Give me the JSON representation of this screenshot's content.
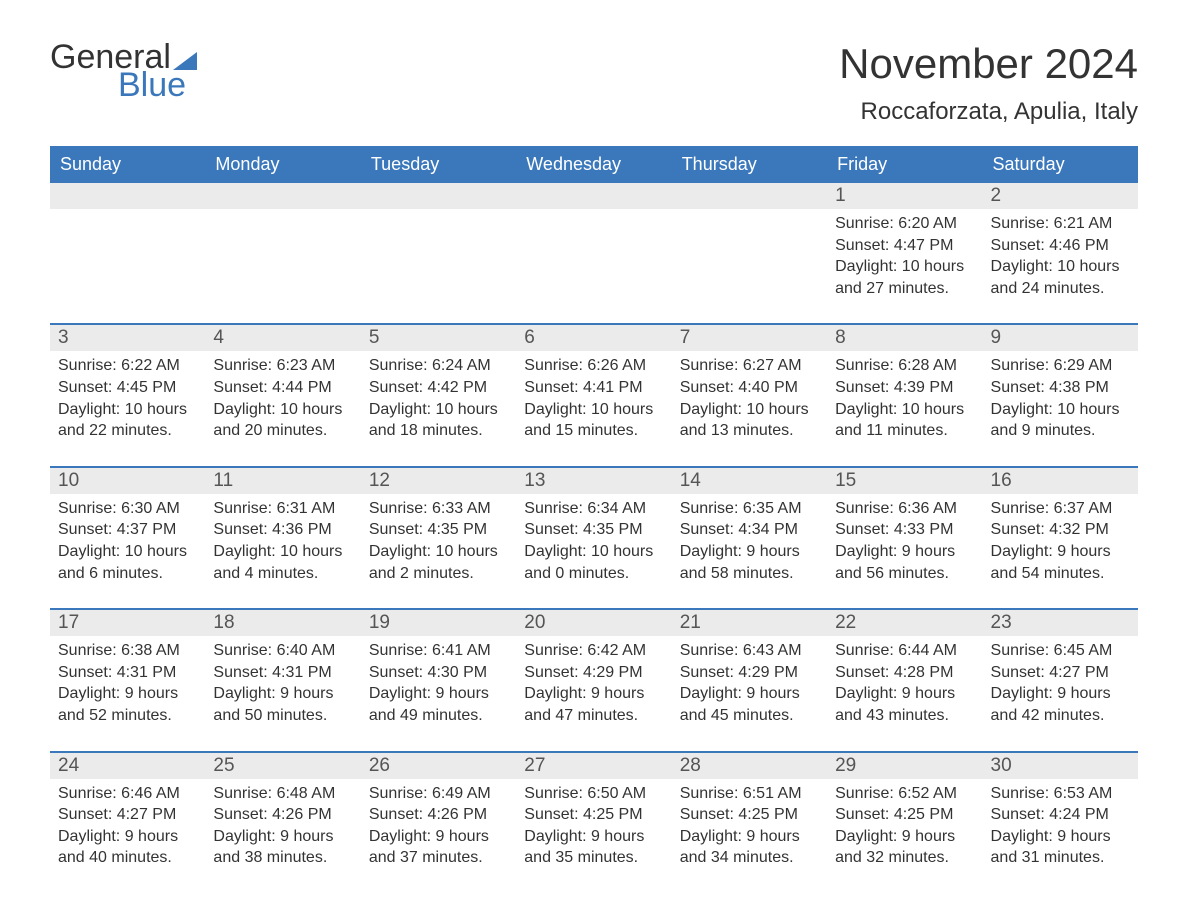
{
  "logo": {
    "text1": "General",
    "text2": "Blue"
  },
  "title": "November 2024",
  "location": "Roccaforzata, Apulia, Italy",
  "colors": {
    "header_bg": "#3b78bb",
    "header_fg": "#ffffff",
    "strip_bg": "#ebebeb",
    "border": "#3b78bb",
    "text": "#333333",
    "logo_accent": "#3b78bb"
  },
  "typography": {
    "title_fontsize": 42,
    "location_fontsize": 24,
    "dayheader_fontsize": 18,
    "date_fontsize": 19,
    "body_fontsize": 16
  },
  "day_headers": [
    "Sunday",
    "Monday",
    "Tuesday",
    "Wednesday",
    "Thursday",
    "Friday",
    "Saturday"
  ],
  "weeks": [
    [
      {
        "blank": true
      },
      {
        "blank": true
      },
      {
        "blank": true
      },
      {
        "blank": true
      },
      {
        "blank": true
      },
      {
        "date": "1",
        "sunrise": "6:20 AM",
        "sunset": "4:47 PM",
        "daylight": "10 hours and 27 minutes."
      },
      {
        "date": "2",
        "sunrise": "6:21 AM",
        "sunset": "4:46 PM",
        "daylight": "10 hours and 24 minutes."
      }
    ],
    [
      {
        "date": "3",
        "sunrise": "6:22 AM",
        "sunset": "4:45 PM",
        "daylight": "10 hours and 22 minutes."
      },
      {
        "date": "4",
        "sunrise": "6:23 AM",
        "sunset": "4:44 PM",
        "daylight": "10 hours and 20 minutes."
      },
      {
        "date": "5",
        "sunrise": "6:24 AM",
        "sunset": "4:42 PM",
        "daylight": "10 hours and 18 minutes."
      },
      {
        "date": "6",
        "sunrise": "6:26 AM",
        "sunset": "4:41 PM",
        "daylight": "10 hours and 15 minutes."
      },
      {
        "date": "7",
        "sunrise": "6:27 AM",
        "sunset": "4:40 PM",
        "daylight": "10 hours and 13 minutes."
      },
      {
        "date": "8",
        "sunrise": "6:28 AM",
        "sunset": "4:39 PM",
        "daylight": "10 hours and 11 minutes."
      },
      {
        "date": "9",
        "sunrise": "6:29 AM",
        "sunset": "4:38 PM",
        "daylight": "10 hours and 9 minutes."
      }
    ],
    [
      {
        "date": "10",
        "sunrise": "6:30 AM",
        "sunset": "4:37 PM",
        "daylight": "10 hours and 6 minutes."
      },
      {
        "date": "11",
        "sunrise": "6:31 AM",
        "sunset": "4:36 PM",
        "daylight": "10 hours and 4 minutes."
      },
      {
        "date": "12",
        "sunrise": "6:33 AM",
        "sunset": "4:35 PM",
        "daylight": "10 hours and 2 minutes."
      },
      {
        "date": "13",
        "sunrise": "6:34 AM",
        "sunset": "4:35 PM",
        "daylight": "10 hours and 0 minutes."
      },
      {
        "date": "14",
        "sunrise": "6:35 AM",
        "sunset": "4:34 PM",
        "daylight": "9 hours and 58 minutes."
      },
      {
        "date": "15",
        "sunrise": "6:36 AM",
        "sunset": "4:33 PM",
        "daylight": "9 hours and 56 minutes."
      },
      {
        "date": "16",
        "sunrise": "6:37 AM",
        "sunset": "4:32 PM",
        "daylight": "9 hours and 54 minutes."
      }
    ],
    [
      {
        "date": "17",
        "sunrise": "6:38 AM",
        "sunset": "4:31 PM",
        "daylight": "9 hours and 52 minutes."
      },
      {
        "date": "18",
        "sunrise": "6:40 AM",
        "sunset": "4:31 PM",
        "daylight": "9 hours and 50 minutes."
      },
      {
        "date": "19",
        "sunrise": "6:41 AM",
        "sunset": "4:30 PM",
        "daylight": "9 hours and 49 minutes."
      },
      {
        "date": "20",
        "sunrise": "6:42 AM",
        "sunset": "4:29 PM",
        "daylight": "9 hours and 47 minutes."
      },
      {
        "date": "21",
        "sunrise": "6:43 AM",
        "sunset": "4:29 PM",
        "daylight": "9 hours and 45 minutes."
      },
      {
        "date": "22",
        "sunrise": "6:44 AM",
        "sunset": "4:28 PM",
        "daylight": "9 hours and 43 minutes."
      },
      {
        "date": "23",
        "sunrise": "6:45 AM",
        "sunset": "4:27 PM",
        "daylight": "9 hours and 42 minutes."
      }
    ],
    [
      {
        "date": "24",
        "sunrise": "6:46 AM",
        "sunset": "4:27 PM",
        "daylight": "9 hours and 40 minutes."
      },
      {
        "date": "25",
        "sunrise": "6:48 AM",
        "sunset": "4:26 PM",
        "daylight": "9 hours and 38 minutes."
      },
      {
        "date": "26",
        "sunrise": "6:49 AM",
        "sunset": "4:26 PM",
        "daylight": "9 hours and 37 minutes."
      },
      {
        "date": "27",
        "sunrise": "6:50 AM",
        "sunset": "4:25 PM",
        "daylight": "9 hours and 35 minutes."
      },
      {
        "date": "28",
        "sunrise": "6:51 AM",
        "sunset": "4:25 PM",
        "daylight": "9 hours and 34 minutes."
      },
      {
        "date": "29",
        "sunrise": "6:52 AM",
        "sunset": "4:25 PM",
        "daylight": "9 hours and 32 minutes."
      },
      {
        "date": "30",
        "sunrise": "6:53 AM",
        "sunset": "4:24 PM",
        "daylight": "9 hours and 31 minutes."
      }
    ]
  ],
  "labels": {
    "sunrise_prefix": "Sunrise: ",
    "sunset_prefix": "Sunset: ",
    "daylight_prefix": "Daylight: "
  }
}
